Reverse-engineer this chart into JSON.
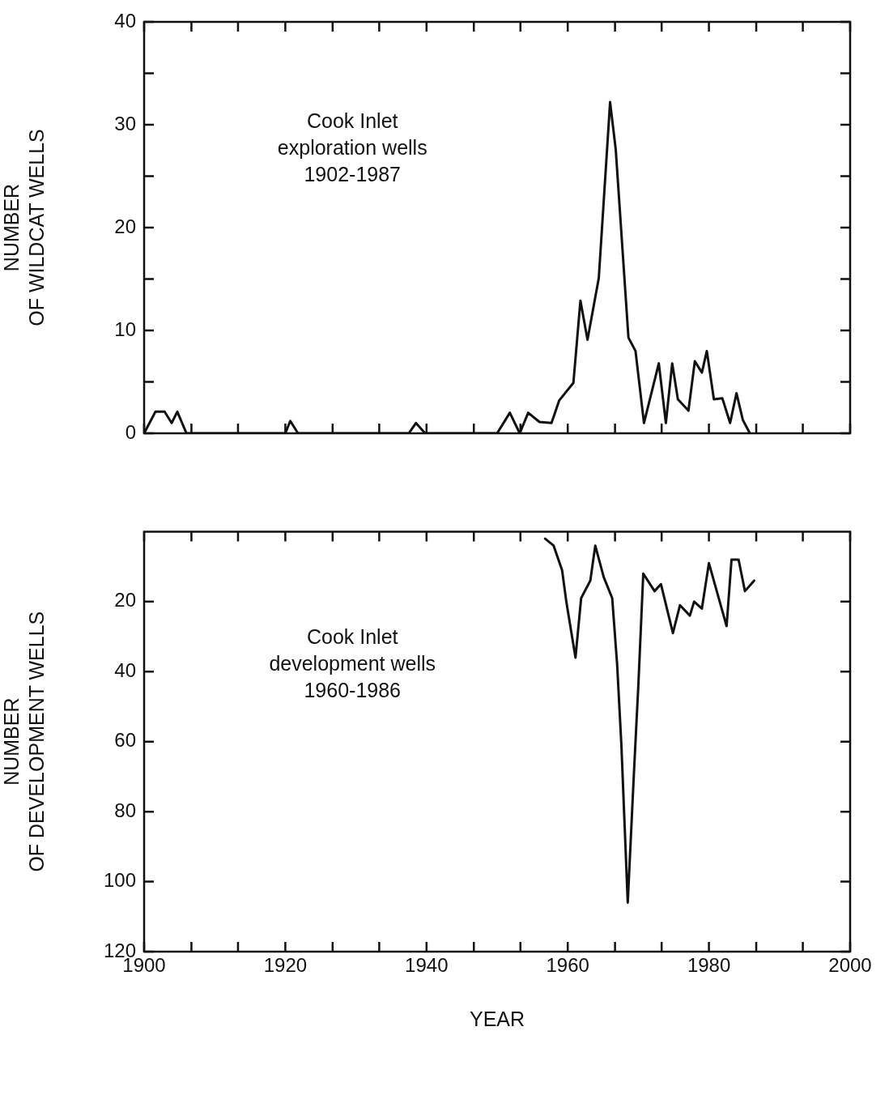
{
  "chart_data": [
    {
      "type": "line",
      "ylabel": "NUMBER\nOF WILDCAT WELLS",
      "annotations": [
        "Cook Inlet\nexploration wells\n1902-1987"
      ],
      "x": [
        1900,
        1901.6,
        1902.9,
        1903.9,
        1904.7,
        1906,
        1920,
        1920.7,
        1921.8,
        1937.5,
        1938.5,
        1939.8,
        1950,
        1951.8,
        1953.2,
        1954.4,
        1956,
        1957.7,
        1958.8,
        1960.8,
        1961.8,
        1962.8,
        1964.4,
        1966,
        1966.8,
        1968.6,
        1969.6,
        1970.8,
        1972.9,
        1973.9,
        1974.8,
        1975.6,
        1977.1,
        1978,
        1979,
        1979.7,
        1980.7,
        1981.9,
        1983,
        1983.9,
        1984.8,
        1985.8
      ],
      "series": [
        {
          "color": "#111111",
          "values": [
            0,
            2.1,
            2.1,
            1,
            2.1,
            0,
            0,
            1.2,
            0,
            0,
            1,
            0,
            0,
            2,
            0,
            2,
            1.1,
            1,
            3.2,
            4.9,
            12.9,
            9.1,
            15.1,
            32.2,
            27.6,
            9.3,
            8,
            1,
            6.8,
            1,
            6.8,
            3.3,
            2.2,
            7,
            5.9,
            8,
            3.3,
            3.4,
            1,
            3.9,
            1.3,
            0
          ]
        }
      ],
      "xlim": [
        1900,
        2000
      ],
      "xticks": [
        1900,
        {
          "value": 1906.7,
          "label": null
        },
        {
          "value": 1913.3,
          "label": null
        },
        1920,
        {
          "value": 1926.7,
          "label": null
        },
        {
          "value": 1933.3,
          "label": null
        },
        1940,
        {
          "value": 1946.7,
          "label": null
        },
        {
          "value": 1953.3,
          "label": null
        },
        1960,
        {
          "value": 1966.7,
          "label": null
        },
        {
          "value": 1973.3,
          "label": null
        },
        1980,
        {
          "value": 1986.7,
          "label": null
        },
        {
          "value": 1993.3,
          "label": null
        },
        2000
      ],
      "ylim": [
        0,
        40
      ],
      "yticks": [
        0,
        {
          "value": 5,
          "label": null
        },
        10,
        {
          "value": 15,
          "label": null
        },
        20,
        {
          "value": 25,
          "label": null
        },
        30,
        {
          "value": 35,
          "label": null
        },
        40
      ],
      "tick_labels": "y",
      "line_style": "solid"
    },
    {
      "type": "line",
      "xlabel": "YEAR",
      "ylabel": "NUMBER\nOF DEVELOPMENT WELLS",
      "annotations": [
        "Cook Inlet\ndevelopment wells\n1960-1986"
      ],
      "x": [
        1956.8,
        1958,
        1959.2,
        1959.8,
        1961.1,
        1961.9,
        1963.2,
        1963.9,
        1965.1,
        1966.3,
        1967,
        1967.6,
        1968.1,
        1968.5,
        1969.4,
        1970,
        1970.7,
        1972.3,
        1973.2,
        1974.9,
        1975.9,
        1977.3,
        1977.9,
        1979,
        1980,
        1982.5,
        1983.2,
        1984.2,
        1985.1,
        1986.4
      ],
      "series": [
        {
          "color": "#111111",
          "values": [
            2,
            4,
            11,
            20,
            36,
            19,
            14,
            4,
            13,
            19,
            38,
            61,
            86,
            106,
            68,
            44,
            12,
            17,
            15,
            29,
            21,
            24,
            20,
            22,
            9,
            27,
            8,
            8,
            17,
            14
          ]
        }
      ],
      "xlim": [
        1900,
        2000
      ],
      "xticks": [
        1900,
        {
          "value": 1906.7,
          "label": null
        },
        {
          "value": 1913.3,
          "label": null
        },
        1920,
        {
          "value": 1926.7,
          "label": null
        },
        {
          "value": 1933.3,
          "label": null
        },
        1940,
        {
          "value": 1946.7,
          "label": null
        },
        {
          "value": 1953.3,
          "label": null
        },
        1960,
        {
          "value": 1966.7,
          "label": null
        },
        {
          "value": 1973.3,
          "label": null
        },
        1980,
        {
          "value": 1986.7,
          "label": null
        },
        {
          "value": 1993.3,
          "label": null
        },
        2000
      ],
      "ylim": [
        120,
        0
      ],
      "yticks": [
        20,
        40,
        60,
        80,
        100,
        120
      ],
      "line_style": "solid"
    }
  ]
}
